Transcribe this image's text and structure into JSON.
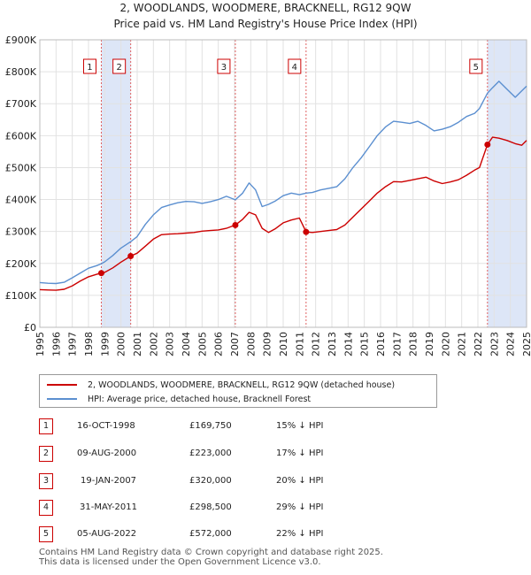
{
  "title_line1": "2, WOODLANDS, WOODMERE, BRACKNELL, RG12 9QW",
  "title_line2": "Price paid vs. HM Land Registry's House Price Index (HPI)",
  "colors": {
    "price_paid": "#cc0000",
    "hpi": "#5b8fd0",
    "shade": "#dde6f7",
    "marker_border": "#cc0000",
    "vline": "#e06060"
  },
  "legend": {
    "price_paid": "2, WOODLANDS, WOODMERE, BRACKNELL, RG12 9QW (detached house)",
    "hpi": "HPI: Average price, detached house, Bracknell Forest"
  },
  "chart_data": {
    "type": "line",
    "title": "2, WOODLANDS, WOODMERE, BRACKNELL, RG12 9QW",
    "xlabel": "",
    "ylabel": "",
    "xlim": [
      1995,
      2025
    ],
    "ylim": [
      0,
      900000
    ],
    "yticks": [
      0,
      100000,
      200000,
      300000,
      400000,
      500000,
      600000,
      700000,
      800000,
      900000
    ],
    "ytick_labels": [
      "£0",
      "£100K",
      "£200K",
      "£300K",
      "£400K",
      "£500K",
      "£600K",
      "£700K",
      "£800K",
      "£900K"
    ],
    "xticks": [
      1995,
      1996,
      1997,
      1998,
      1999,
      2000,
      2001,
      2002,
      2003,
      2004,
      2005,
      2006,
      2007,
      2008,
      2009,
      2010,
      2011,
      2012,
      2013,
      2014,
      2015,
      2016,
      2017,
      2018,
      2019,
      2020,
      2021,
      2022,
      2023,
      2024,
      2025
    ],
    "shaded_ranges": [
      [
        1998.79,
        2000.6
      ],
      [
        2022.59,
        2025
      ]
    ],
    "series": [
      {
        "name": "HPI: Average price, detached house, Bracknell Forest",
        "x": [
          1995,
          1995.5,
          1996,
          1996.5,
          1997,
          1997.5,
          1998,
          1998.5,
          1998.79,
          1999,
          1999.5,
          2000,
          2000.6,
          2001,
          2001.5,
          2002,
          2002.5,
          2003,
          2003.5,
          2004,
          2004.5,
          2005,
          2005.5,
          2006,
          2006.5,
          2007.05,
          2007.5,
          2007.9,
          2008.3,
          2008.7,
          2009.1,
          2009.5,
          2010,
          2010.5,
          2011,
          2011.41,
          2011.8,
          2012.3,
          2012.8,
          2013.3,
          2013.8,
          2014.3,
          2014.8,
          2015.3,
          2015.8,
          2016.3,
          2016.8,
          2017.3,
          2017.8,
          2018.3,
          2018.8,
          2019.3,
          2019.8,
          2020.3,
          2020.8,
          2021.3,
          2021.8,
          2022.1,
          2022.59,
          2022.9,
          2023.3,
          2023.8,
          2024.3,
          2024.7,
          2025
        ],
        "values": [
          140000,
          138000,
          137000,
          141000,
          155000,
          170000,
          185000,
          193000,
          199000,
          205000,
          225000,
          248000,
          268000,
          284000,
          322000,
          352000,
          375000,
          383000,
          390000,
          394000,
          393000,
          388000,
          393000,
          400000,
          410000,
          399000,
          420000,
          452000,
          430000,
          378000,
          385000,
          395000,
          412000,
          420000,
          415000,
          420000,
          422000,
          430000,
          435000,
          440000,
          465000,
          500000,
          530000,
          565000,
          600000,
          627000,
          645000,
          642000,
          638000,
          645000,
          632000,
          615000,
          620000,
          628000,
          642000,
          660000,
          670000,
          685000,
          733000,
          750000,
          770000,
          745000,
          720000,
          740000,
          755000
        ]
      },
      {
        "name": "2, WOODLANDS, WOODMERE, BRACKNELL, RG12 9QW (detached house)",
        "x": [
          1995,
          1995.5,
          1996,
          1996.5,
          1997,
          1997.5,
          1998,
          1998.5,
          1998.79,
          1999,
          1999.5,
          2000,
          2000.6,
          2001,
          2001.5,
          2002,
          2002.5,
          2003,
          2003.5,
          2004,
          2004.5,
          2005,
          2005.5,
          2006,
          2006.5,
          2007.05,
          2007.5,
          2007.9,
          2008.3,
          2008.7,
          2009.1,
          2009.5,
          2010,
          2010.5,
          2011,
          2011.41,
          2011.8,
          2012.3,
          2012.8,
          2013.3,
          2013.8,
          2014.3,
          2014.8,
          2015.3,
          2015.8,
          2016.3,
          2016.8,
          2017.3,
          2017.8,
          2018.3,
          2018.8,
          2019.3,
          2019.8,
          2020.3,
          2020.8,
          2021.3,
          2021.8,
          2022.1,
          2022.59,
          2022.9,
          2023.3,
          2023.8,
          2024.3,
          2024.7,
          2025
        ],
        "values": [
          118000,
          117000,
          116000,
          119000,
          130000,
          145000,
          158000,
          166000,
          169750,
          172000,
          186000,
          204000,
          223000,
          232000,
          254000,
          276000,
          290000,
          292000,
          293000,
          295000,
          297000,
          301000,
          303000,
          305000,
          310000,
          320000,
          338000,
          360000,
          352000,
          310000,
          297000,
          308000,
          327000,
          336000,
          342000,
          298500,
          297000,
          300000,
          303000,
          306000,
          320000,
          345000,
          370000,
          395000,
          420000,
          440000,
          456000,
          455000,
          460000,
          465000,
          470000,
          458000,
          450000,
          455000,
          462000,
          476000,
          492000,
          500000,
          572000,
          595000,
          592000,
          585000,
          575000,
          570000,
          585000
        ]
      }
    ],
    "sales": [
      {
        "label": "1",
        "year": 1998.79,
        "price": 169750
      },
      {
        "label": "2",
        "year": 2000.6,
        "price": 223000
      },
      {
        "label": "3",
        "year": 2007.05,
        "price": 320000
      },
      {
        "label": "4",
        "year": 2011.41,
        "price": 298500
      },
      {
        "label": "5",
        "year": 2022.59,
        "price": 572000
      }
    ]
  },
  "sales_table": [
    {
      "num": "1",
      "date": "16-OCT-1998",
      "price": "£169,750",
      "diff": "15% ↓ HPI"
    },
    {
      "num": "2",
      "date": "09-AUG-2000",
      "price": "£223,000",
      "diff": "17% ↓ HPI"
    },
    {
      "num": "3",
      "date": "19-JAN-2007",
      "price": "£320,000",
      "diff": "20% ↓ HPI"
    },
    {
      "num": "4",
      "date": "31-MAY-2011",
      "price": "£298,500",
      "diff": "29% ↓ HPI"
    },
    {
      "num": "5",
      "date": "05-AUG-2022",
      "price": "£572,000",
      "diff": "22% ↓ HPI"
    }
  ],
  "footer_line1": "Contains HM Land Registry data © Crown copyright and database right 2025.",
  "footer_line2": "This data is licensed under the Open Government Licence v3.0."
}
